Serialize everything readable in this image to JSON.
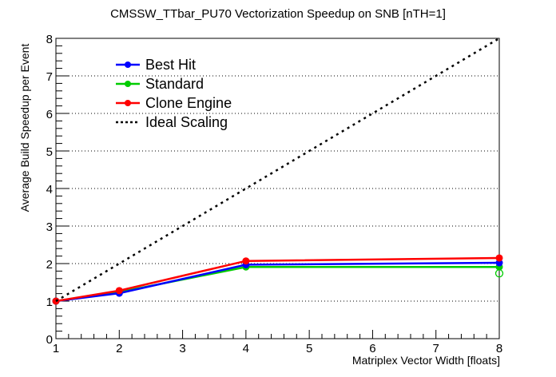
{
  "chart_data": {
    "type": "line",
    "title": "CMSSW_TTbar_PU70 Vectorization Speedup on SNB [nTH=1]",
    "xlabel": "Matriplex Vector Width [floats]",
    "ylabel": "Average Build Speedup per Event",
    "xlim": [
      1,
      8
    ],
    "ylim": [
      0,
      8
    ],
    "xticks": [
      "1",
      "2",
      "3",
      "4",
      "5",
      "6",
      "7",
      "8"
    ],
    "yticks": [
      "0",
      "1",
      "2",
      "3",
      "4",
      "5",
      "6",
      "7",
      "8"
    ],
    "grid": "horizontal dotted",
    "legend_position": "top-left",
    "x": [
      1,
      2,
      4,
      8
    ],
    "series": [
      {
        "name": "Best Hit",
        "color": "#0000ff",
        "values": [
          1.0,
          1.21,
          1.97,
          2.02
        ]
      },
      {
        "name": "Standard",
        "color": "#00cc00",
        "values": [
          1.0,
          1.24,
          1.91,
          1.91
        ]
      },
      {
        "name": "Clone Engine",
        "color": "#ff0000",
        "values": [
          1.0,
          1.28,
          2.07,
          2.15
        ]
      },
      {
        "name": "Ideal Scaling",
        "color": "#000000",
        "style": "dotted",
        "x": [
          1,
          8
        ],
        "values": [
          1,
          8
        ]
      }
    ],
    "extra_points": [
      {
        "series": "Standard",
        "x": 8,
        "y": 1.74,
        "marker": "open-circle",
        "color": "#00cc00"
      }
    ]
  }
}
